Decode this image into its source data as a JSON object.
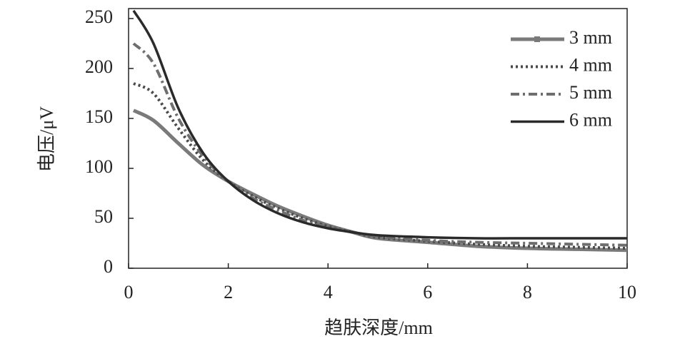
{
  "chart_data": {
    "type": "line",
    "x_label": "趋肤深度/mm",
    "y_label": "电压/μV",
    "x": [
      0.1,
      0.5,
      1,
      1.5,
      2,
      2.5,
      3,
      3.5,
      4,
      4.5,
      5,
      6,
      7,
      8,
      9,
      10
    ],
    "series": [
      {
        "name": "3 mm",
        "color": "#7a7a7a",
        "style": "solid-marker",
        "values": [
          158,
          148,
          125,
          103,
          87,
          74,
          62,
          52,
          43,
          36,
          30,
          26,
          22,
          20,
          19,
          18
        ]
      },
      {
        "name": "4 mm",
        "color": "#4a4a4a",
        "style": "dotted",
        "values": [
          185,
          175,
          140,
          108,
          87,
          72,
          60,
          50,
          42,
          36,
          31,
          27,
          24,
          22,
          21,
          20
        ]
      },
      {
        "name": "5 mm",
        "color": "#6e6e6e",
        "style": "dashdot",
        "values": [
          225,
          205,
          150,
          112,
          87,
          70,
          58,
          48,
          41,
          36,
          32,
          28,
          26,
          25,
          24,
          23
        ]
      },
      {
        "name": "6 mm",
        "color": "#2a2a2a",
        "style": "solid",
        "values": [
          258,
          225,
          160,
          115,
          87,
          68,
          55,
          46,
          40,
          36,
          33,
          31,
          30,
          30,
          30,
          30
        ]
      }
    ],
    "xlim": [
      0,
      10
    ],
    "xticks": [
      0,
      2,
      4,
      6,
      8,
      10
    ],
    "ylim": [
      0,
      260
    ],
    "yticks": [
      0,
      50,
      100,
      150,
      200,
      250
    ],
    "legend": "upper right",
    "grid": false
  }
}
